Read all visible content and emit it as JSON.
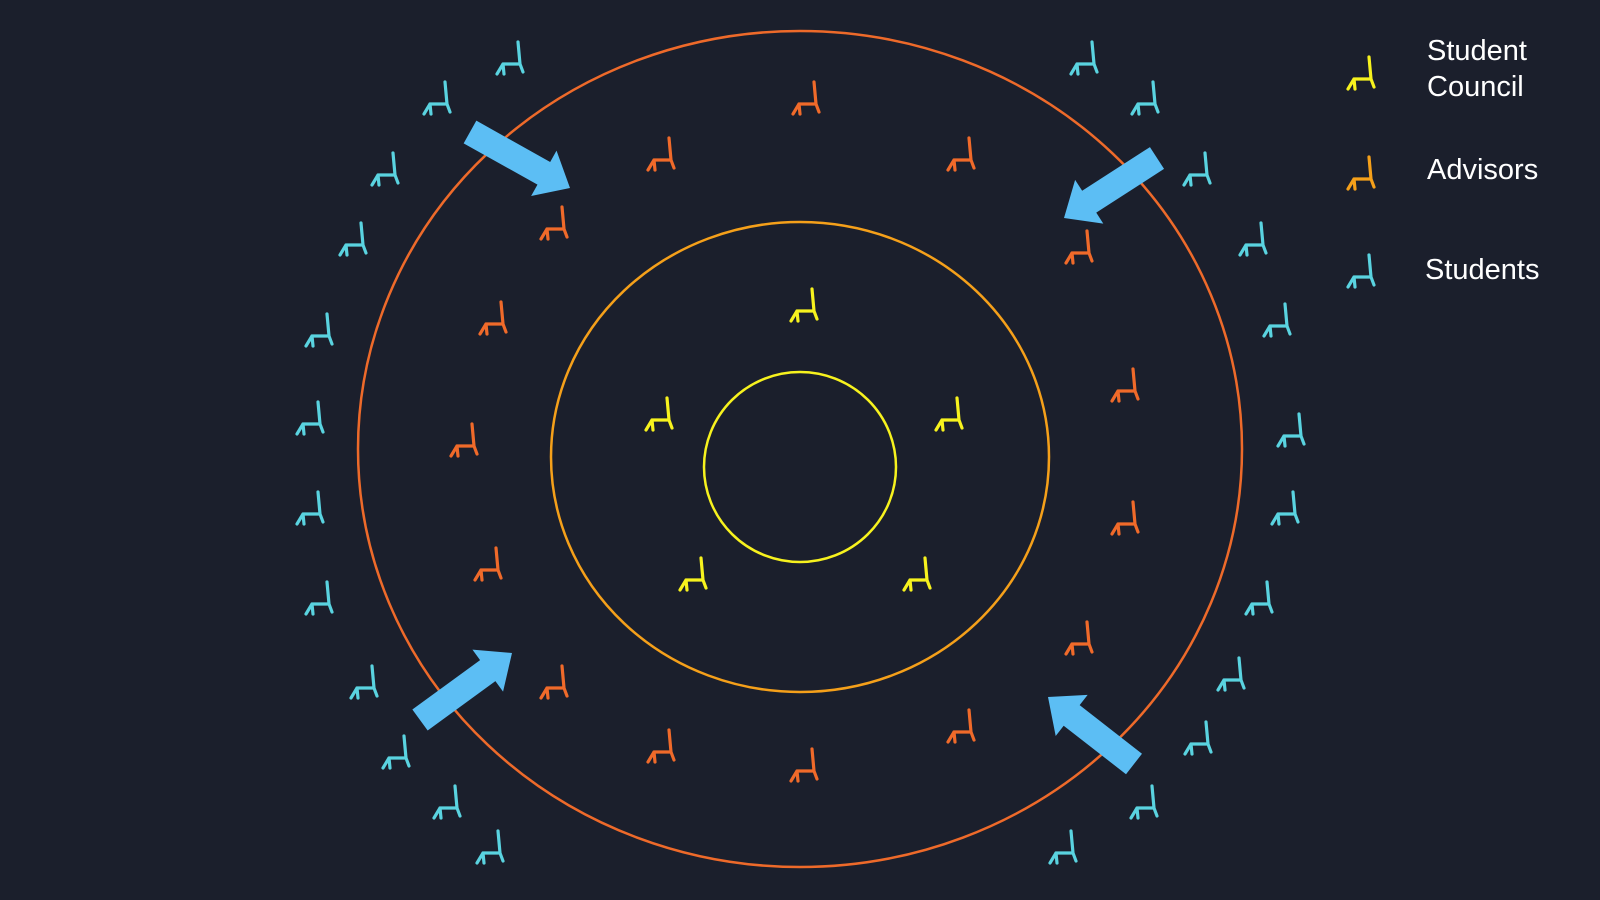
{
  "colors": {
    "background": "#1b1f2c",
    "student_council": "#f7f21e",
    "advisors": "#f06a2a",
    "students": "#5ad3e0",
    "ring_inner": "#f7f21e",
    "ring_middle": "#f5a01a",
    "ring_outer": "#ee6a2a",
    "arrow": "#5cbef4"
  },
  "legend": {
    "student_council": "Student\nCouncil",
    "advisors": "Advisors",
    "students": "Students"
  },
  "icons": {
    "seat": "chair-icon",
    "movement": "arrow-icon"
  }
}
